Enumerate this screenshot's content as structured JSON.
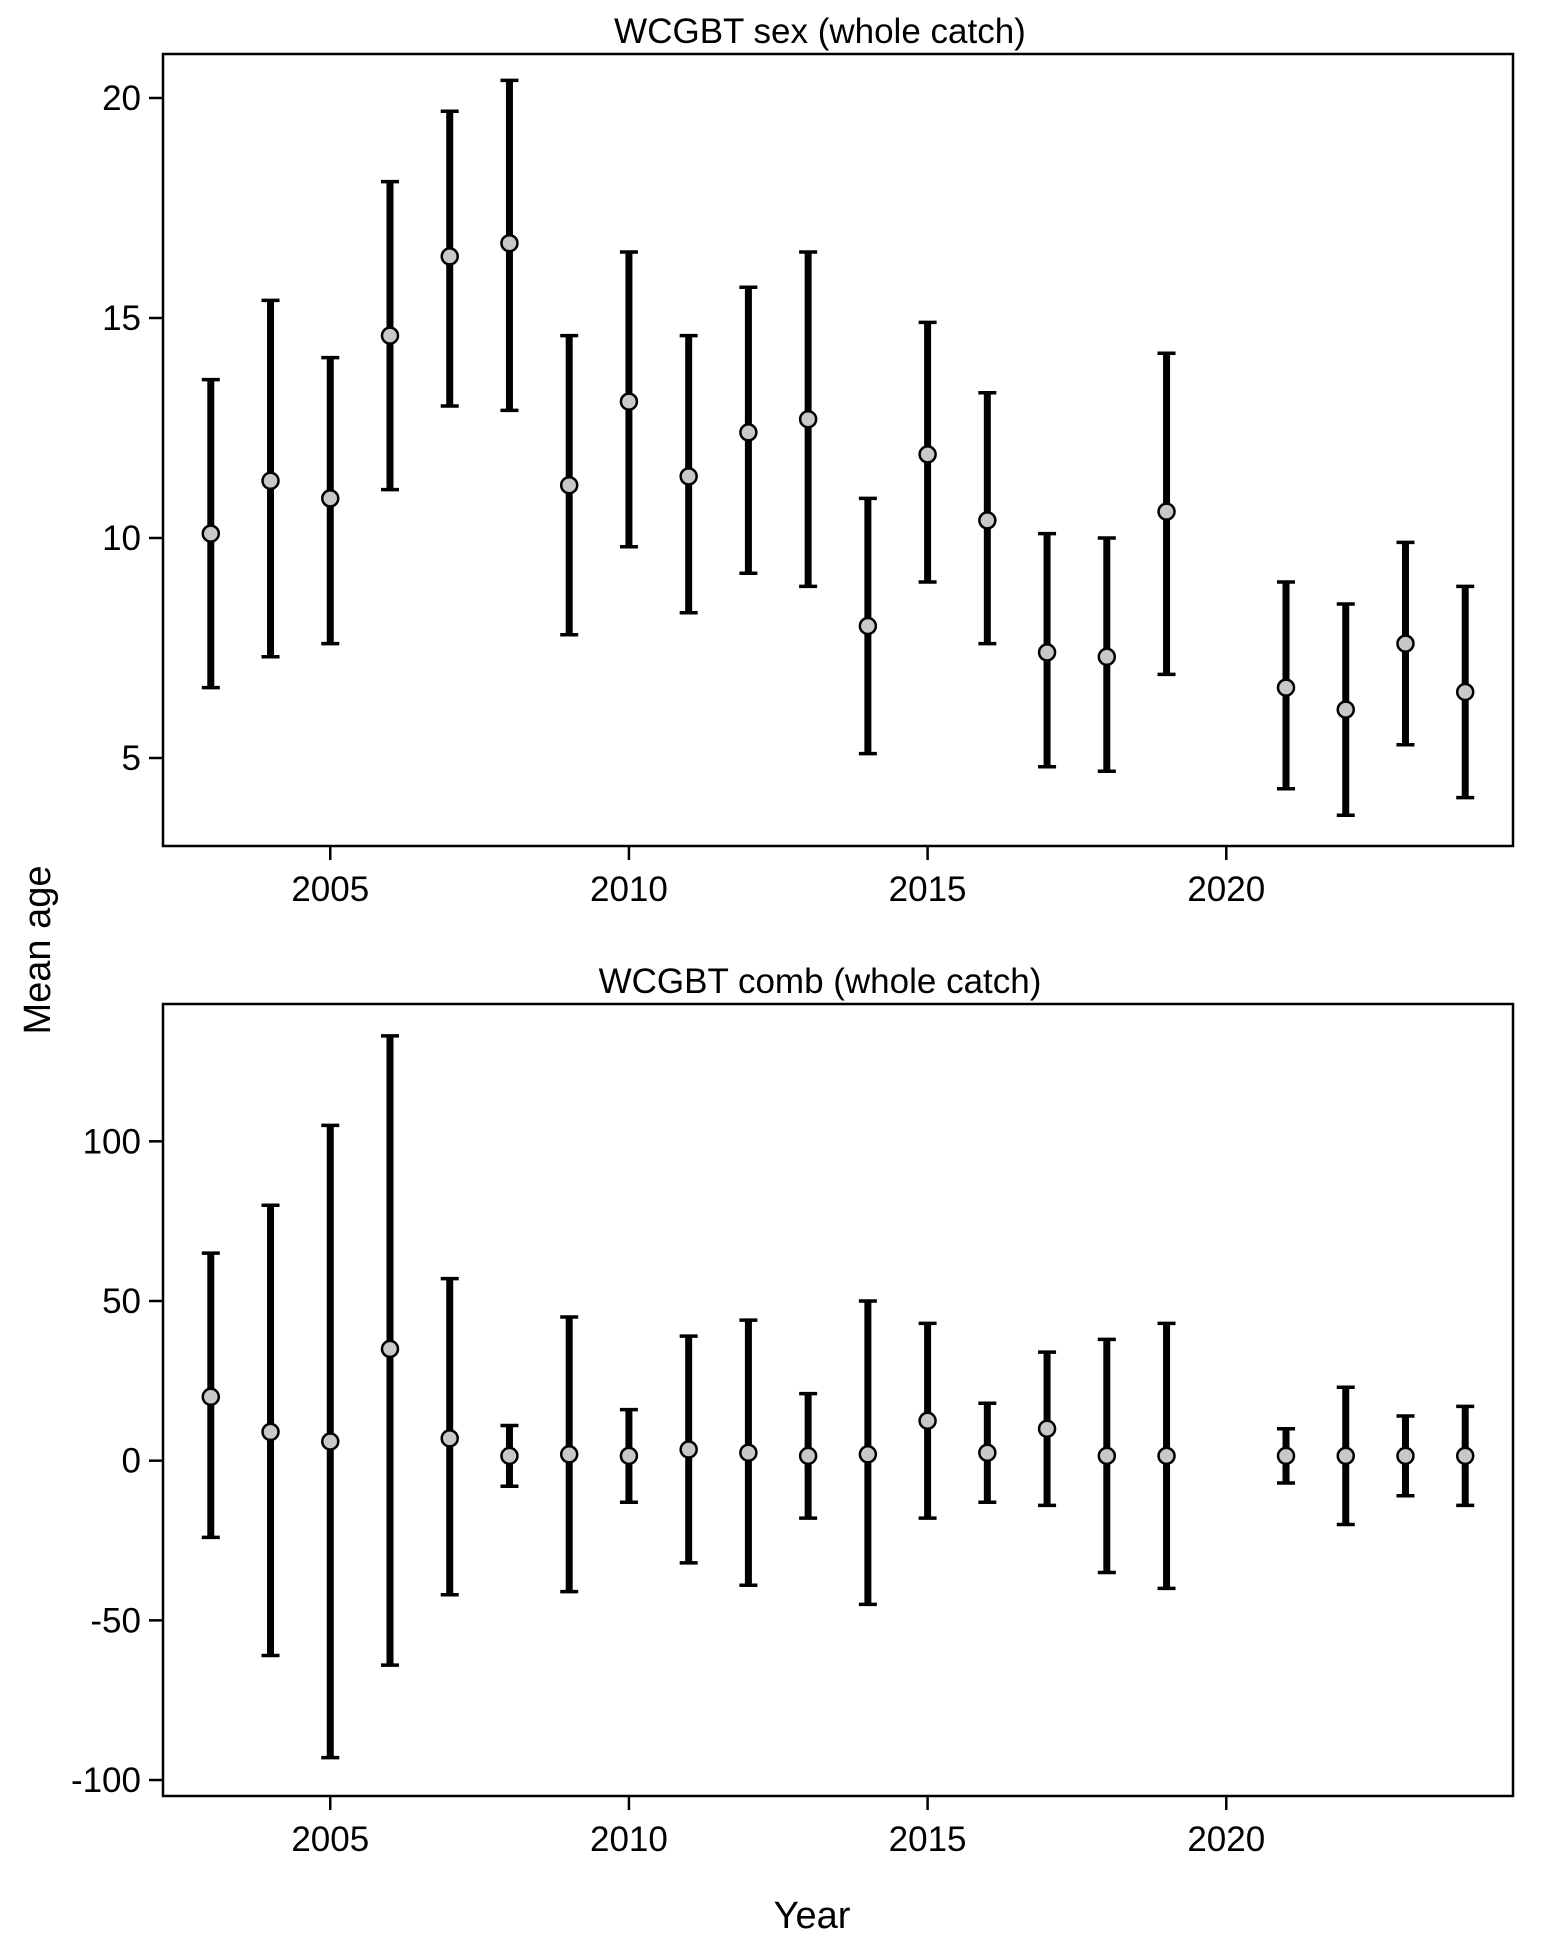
{
  "figure": {
    "ylabel": "Mean age",
    "xlabel": "Year"
  },
  "chart_data": [
    {
      "type": "scatter",
      "title": "WCGBT sex (whole catch)",
      "xlabel": "Year",
      "ylabel": "Mean age",
      "xlim": [
        2002.2,
        2024.8
      ],
      "ylim": [
        3.0,
        21.0
      ],
      "xticks": [
        2005,
        2010,
        2015,
        2020
      ],
      "yticks": [
        5,
        10,
        15,
        20
      ],
      "grid": false,
      "legend": "none",
      "marker_color": "#c8c8c8",
      "bar_color": "#000000",
      "x": [
        2003,
        2004,
        2005,
        2006,
        2007,
        2008,
        2009,
        2010,
        2011,
        2012,
        2013,
        2014,
        2015,
        2016,
        2017,
        2018,
        2019,
        2021,
        2022,
        2023,
        2024
      ],
      "y": [
        10.1,
        11.3,
        10.9,
        14.6,
        16.4,
        16.7,
        11.2,
        13.1,
        11.4,
        12.4,
        12.7,
        8.0,
        11.9,
        10.4,
        7.4,
        7.3,
        10.6,
        6.6,
        6.1,
        7.6,
        6.5
      ],
      "lower": [
        6.6,
        7.3,
        7.6,
        11.1,
        13.0,
        12.9,
        7.8,
        9.8,
        8.3,
        9.2,
        8.9,
        5.1,
        9.0,
        7.6,
        4.8,
        4.7,
        6.9,
        4.3,
        3.7,
        5.3,
        4.1
      ],
      "upper": [
        13.6,
        15.4,
        14.1,
        18.1,
        19.7,
        20.4,
        14.6,
        16.5,
        14.6,
        15.7,
        16.5,
        10.9,
        14.9,
        13.3,
        10.1,
        10.0,
        14.2,
        9.0,
        8.5,
        9.9,
        8.9
      ]
    },
    {
      "type": "scatter",
      "title": "WCGBT comb (whole catch)",
      "xlabel": "Year",
      "ylabel": "Mean age",
      "xlim": [
        2002.2,
        2024.8
      ],
      "ylim": [
        -105,
        143
      ],
      "xticks": [
        2005,
        2010,
        2015,
        2020
      ],
      "yticks": [
        -100,
        -50,
        0,
        50,
        100
      ],
      "grid": false,
      "legend": "none",
      "marker_color": "#c8c8c8",
      "bar_color": "#000000",
      "x": [
        2003,
        2004,
        2005,
        2006,
        2007,
        2008,
        2009,
        2010,
        2011,
        2012,
        2013,
        2014,
        2015,
        2016,
        2017,
        2018,
        2019,
        2021,
        2022,
        2023,
        2024
      ],
      "y": [
        20,
        9,
        6,
        35,
        7,
        1.5,
        2,
        1.5,
        3.5,
        2.5,
        1.5,
        2,
        12.5,
        2.5,
        10,
        1.5,
        1.5,
        1.5,
        1.5,
        1.5,
        1.5
      ],
      "lower": [
        -24,
        -61,
        -93,
        -64,
        -42,
        -8,
        -41,
        -13,
        -32,
        -39,
        -18,
        -45,
        -18,
        -13,
        -14,
        -35,
        -40,
        -7,
        -20,
        -11,
        -14
      ],
      "upper": [
        65,
        80,
        105,
        133,
        57,
        11,
        45,
        16,
        39,
        44,
        21,
        50,
        43,
        18,
        34,
        38,
        43,
        10,
        23,
        14,
        17
      ]
    }
  ]
}
